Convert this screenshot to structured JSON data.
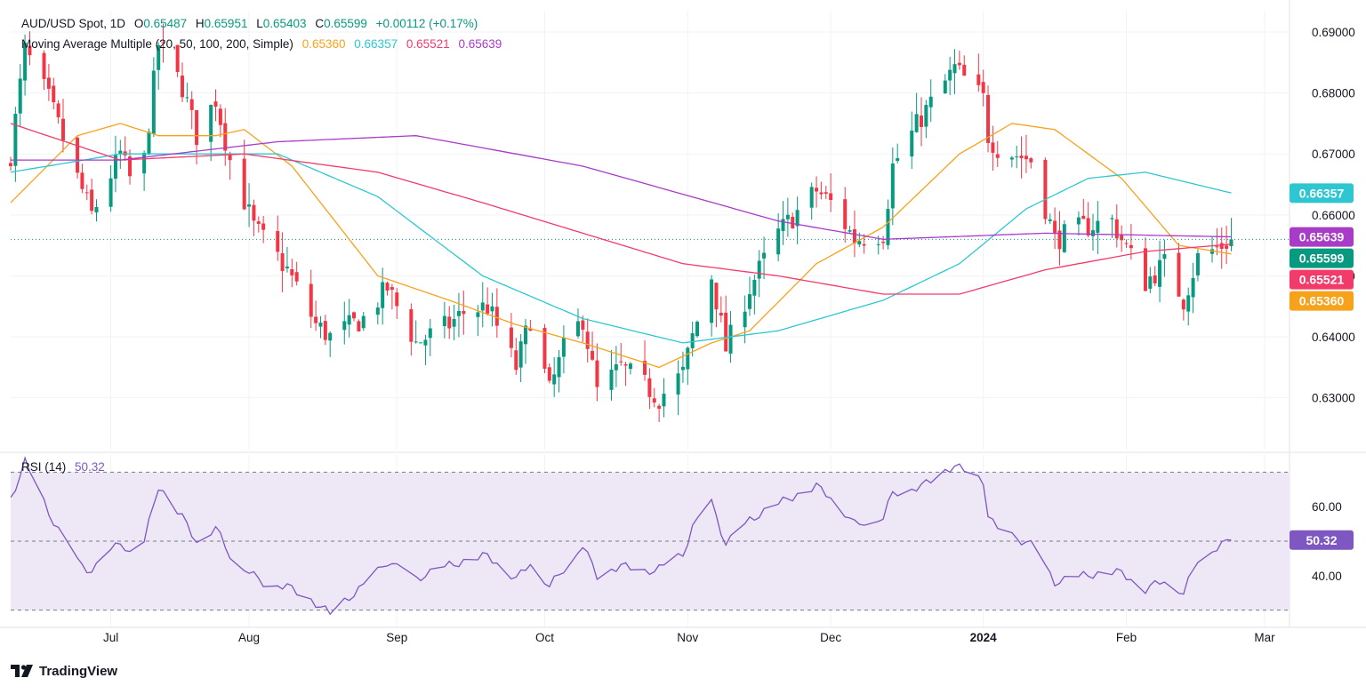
{
  "header": {
    "symbol": "AUD/USD Spot, 1D",
    "open_label": "O",
    "open": "0.65487",
    "high_label": "H",
    "high": "0.65951",
    "low_label": "L",
    "low": "0.65403",
    "close_label": "C",
    "close": "0.65599",
    "change": "+0.00112 (+0.17%)",
    "ma_label": "Moving Average Multiple (20, 50, 100, 200, Simple)",
    "ma20": "0.65360",
    "ma50": "0.66357",
    "ma100": "0.65521",
    "ma200": "0.65639"
  },
  "rsi_header": {
    "label": "RSI (14)",
    "value": "50.32"
  },
  "brand": "TradingView",
  "colors": {
    "up": "#089981",
    "down": "#f23645",
    "ma20": "#f7a21b",
    "ma50": "#2ec7d1",
    "ma100": "#f23b6b",
    "ma200": "#a83bc7",
    "rsi": "#7e57c2",
    "rsi_band": "#ede7f6",
    "grid": "#f0f3fa",
    "text": "#131722"
  },
  "chart_data": [
    {
      "type": "candlestick",
      "title": "AUD/USD Spot, 1D",
      "ylim": [
        0.6215,
        0.6935
      ],
      "y_ticks": [
        0.63,
        0.64,
        0.65,
        0.66,
        0.67,
        0.68,
        0.69
      ],
      "y_tick_labels": [
        "0.63000",
        "0.64000",
        "0.65000",
        "0.66000",
        "0.67000",
        "0.68000",
        "0.69000"
      ],
      "x_ticks": [
        {
          "date": "2023-07-03",
          "label": "Jul"
        },
        {
          "date": "2023-08-01",
          "label": "Aug"
        },
        {
          "date": "2023-09-01",
          "label": "Sep"
        },
        {
          "date": "2023-10-02",
          "label": "Oct"
        },
        {
          "date": "2023-11-01",
          "label": "Nov"
        },
        {
          "date": "2023-12-01",
          "label": "Dec"
        },
        {
          "date": "2024-01-02",
          "label": "2024"
        },
        {
          "date": "2024-02-01",
          "label": "Feb"
        },
        {
          "date": "2024-03-01",
          "label": "Mar"
        }
      ],
      "anchors": [
        {
          "date": "2023-06-12",
          "close": 0.67
        },
        {
          "date": "2023-06-15",
          "close": 0.687
        },
        {
          "date": "2023-06-20",
          "close": 0.679
        },
        {
          "date": "2023-06-26",
          "close": 0.666
        },
        {
          "date": "2023-06-29",
          "close": 0.66
        },
        {
          "date": "2023-07-05",
          "close": 0.67
        },
        {
          "date": "2023-07-07",
          "close": 0.666
        },
        {
          "date": "2023-07-10",
          "close": 0.669
        },
        {
          "date": "2023-07-13",
          "close": 0.688
        },
        {
          "date": "2023-07-18",
          "close": 0.681
        },
        {
          "date": "2023-07-21",
          "close": 0.673
        },
        {
          "date": "2023-07-25",
          "close": 0.679
        },
        {
          "date": "2023-07-28",
          "close": 0.669
        },
        {
          "date": "2023-08-02",
          "close": 0.658
        },
        {
          "date": "2023-08-04",
          "close": 0.656
        },
        {
          "date": "2023-08-09",
          "close": 0.651
        },
        {
          "date": "2023-08-15",
          "close": 0.642
        },
        {
          "date": "2023-08-18",
          "close": 0.64
        },
        {
          "date": "2023-08-25",
          "close": 0.643
        },
        {
          "date": "2023-08-30",
          "close": 0.648
        },
        {
          "date": "2023-09-05",
          "close": 0.639
        },
        {
          "date": "2023-09-12",
          "close": 0.642
        },
        {
          "date": "2023-09-15",
          "close": 0.644
        },
        {
          "date": "2023-09-20",
          "close": 0.645
        },
        {
          "date": "2023-09-26",
          "close": 0.635
        },
        {
          "date": "2023-09-29",
          "close": 0.643
        },
        {
          "date": "2023-10-03",
          "close": 0.631
        },
        {
          "date": "2023-10-06",
          "close": 0.638
        },
        {
          "date": "2023-10-10",
          "close": 0.643
        },
        {
          "date": "2023-10-13",
          "close": 0.631
        },
        {
          "date": "2023-10-18",
          "close": 0.635
        },
        {
          "date": "2023-10-23",
          "close": 0.632
        },
        {
          "date": "2023-10-26",
          "close": 0.63
        },
        {
          "date": "2023-10-31",
          "close": 0.634
        },
        {
          "date": "2023-11-02",
          "close": 0.64
        },
        {
          "date": "2023-11-06",
          "close": 0.65
        },
        {
          "date": "2023-11-09",
          "close": 0.638
        },
        {
          "date": "2023-11-14",
          "close": 0.648
        },
        {
          "date": "2023-11-20",
          "close": 0.657
        },
        {
          "date": "2023-11-28",
          "close": 0.664
        },
        {
          "date": "2023-12-01",
          "close": 0.662
        },
        {
          "date": "2023-12-06",
          "close": 0.656
        },
        {
          "date": "2023-12-12",
          "close": 0.657
        },
        {
          "date": "2023-12-14",
          "close": 0.668
        },
        {
          "date": "2023-12-20",
          "close": 0.676
        },
        {
          "date": "2023-12-27",
          "close": 0.684
        },
        {
          "date": "2024-01-02",
          "close": 0.679
        },
        {
          "date": "2024-01-03",
          "close": 0.673
        },
        {
          "date": "2024-01-05",
          "close": 0.671
        },
        {
          "date": "2024-01-12",
          "close": 0.669
        },
        {
          "date": "2024-01-17",
          "close": 0.656
        },
        {
          "date": "2024-01-23",
          "close": 0.658
        },
        {
          "date": "2024-01-29",
          "close": 0.659
        },
        {
          "date": "2024-01-31",
          "close": 0.656
        },
        {
          "date": "2024-02-05",
          "close": 0.649
        },
        {
          "date": "2024-02-09",
          "close": 0.652
        },
        {
          "date": "2024-02-13",
          "close": 0.646
        },
        {
          "date": "2024-02-16",
          "close": 0.653
        },
        {
          "date": "2024-02-21",
          "close": 0.655
        },
        {
          "date": "2024-02-23",
          "close": 0.656
        }
      ],
      "last_bar": {
        "date": "2024-02-23",
        "open": 0.65487,
        "high": 0.65951,
        "low": 0.65403,
        "close": 0.65599
      },
      "moving_averages": [
        {
          "name": "MA 20",
          "last": 0.6536,
          "points": [
            [
              "2023-06-12",
              0.662
            ],
            [
              "2023-06-26",
              0.673
            ],
            [
              "2023-07-05",
              0.675
            ],
            [
              "2023-07-13",
              0.673
            ],
            [
              "2023-07-25",
              0.673
            ],
            [
              "2023-07-31",
              0.674
            ],
            [
              "2023-08-10",
              0.668
            ],
            [
              "2023-08-28",
              0.65
            ],
            [
              "2023-09-12",
              0.646
            ],
            [
              "2023-09-26",
              0.642
            ],
            [
              "2023-10-10",
              0.639
            ],
            [
              "2023-10-26",
              0.635
            ],
            [
              "2023-11-06",
              0.639
            ],
            [
              "2023-11-14",
              0.641
            ],
            [
              "2023-11-28",
              0.652
            ],
            [
              "2023-12-12",
              0.658
            ],
            [
              "2023-12-28",
              0.67
            ],
            [
              "2024-01-08",
              0.675
            ],
            [
              "2024-01-17",
              0.674
            ],
            [
              "2024-01-31",
              0.666
            ],
            [
              "2024-02-12",
              0.655
            ],
            [
              "2024-02-23",
              0.6536
            ]
          ]
        },
        {
          "name": "MA 50",
          "last": 0.66357,
          "points": [
            [
              "2023-06-12",
              0.667
            ],
            [
              "2023-07-05",
              0.67
            ],
            [
              "2023-07-25",
              0.67
            ],
            [
              "2023-08-07",
              0.67
            ],
            [
              "2023-08-28",
              0.663
            ],
            [
              "2023-09-19",
              0.65
            ],
            [
              "2023-10-10",
              0.643
            ],
            [
              "2023-10-31",
              0.639
            ],
            [
              "2023-11-20",
              0.641
            ],
            [
              "2023-12-12",
              0.646
            ],
            [
              "2023-12-28",
              0.652
            ],
            [
              "2024-01-11",
              0.661
            ],
            [
              "2024-01-24",
              0.666
            ],
            [
              "2024-02-05",
              0.667
            ],
            [
              "2024-02-23",
              0.6636
            ]
          ]
        },
        {
          "name": "MA 100",
          "last": 0.65521,
          "points": [
            [
              "2023-06-12",
              0.675
            ],
            [
              "2023-07-05",
              0.669
            ],
            [
              "2023-07-31",
              0.67
            ],
            [
              "2023-08-28",
              0.667
            ],
            [
              "2023-09-19",
              0.662
            ],
            [
              "2023-10-10",
              0.657
            ],
            [
              "2023-10-31",
              0.652
            ],
            [
              "2023-11-20",
              0.65
            ],
            [
              "2023-12-12",
              0.647
            ],
            [
              "2023-12-28",
              0.647
            ],
            [
              "2024-01-15",
              0.651
            ],
            [
              "2024-02-05",
              0.654
            ],
            [
              "2024-02-23",
              0.6552
            ]
          ]
        },
        {
          "name": "MA 200",
          "last": 0.65639,
          "points": [
            [
              "2023-06-12",
              0.669
            ],
            [
              "2023-07-05",
              0.669
            ],
            [
              "2023-08-07",
              0.672
            ],
            [
              "2023-09-05",
              0.673
            ],
            [
              "2023-10-10",
              0.668
            ],
            [
              "2023-11-20",
              0.659
            ],
            [
              "2023-12-12",
              0.656
            ],
            [
              "2024-01-15",
              0.657
            ],
            [
              "2024-02-23",
              0.6564
            ]
          ]
        }
      ],
      "last_price_labels": [
        "0.66357",
        "0.65639",
        "0.65599",
        "0.65521",
        "0.65360"
      ]
    },
    {
      "type": "line",
      "title": "RSI (14)",
      "ylim": [
        25,
        75
      ],
      "y_ticks": [
        40,
        60
      ],
      "y_tick_labels": [
        "40.00",
        "60.00"
      ],
      "bands": [
        30,
        50,
        70
      ],
      "last": 50.32,
      "points": [
        [
          "2023-06-12",
          62
        ],
        [
          "2023-06-15",
          73
        ],
        [
          "2023-06-20",
          58
        ],
        [
          "2023-06-26",
          44
        ],
        [
          "2023-06-29",
          41
        ],
        [
          "2023-07-05",
          50
        ],
        [
          "2023-07-07",
          46
        ],
        [
          "2023-07-10",
          50
        ],
        [
          "2023-07-13",
          66
        ],
        [
          "2023-07-18",
          57
        ],
        [
          "2023-07-21",
          50
        ],
        [
          "2023-07-25",
          54
        ],
        [
          "2023-07-28",
          46
        ],
        [
          "2023-08-02",
          40
        ],
        [
          "2023-08-04",
          38
        ],
        [
          "2023-08-09",
          37
        ],
        [
          "2023-08-15",
          32
        ],
        [
          "2023-08-18",
          29
        ],
        [
          "2023-08-25",
          37
        ],
        [
          "2023-08-30",
          44
        ],
        [
          "2023-09-05",
          39
        ],
        [
          "2023-09-12",
          43
        ],
        [
          "2023-09-15",
          44
        ],
        [
          "2023-09-20",
          46
        ],
        [
          "2023-09-26",
          39
        ],
        [
          "2023-09-29",
          44
        ],
        [
          "2023-10-03",
          37
        ],
        [
          "2023-10-06",
          42
        ],
        [
          "2023-10-10",
          49
        ],
        [
          "2023-10-13",
          40
        ],
        [
          "2023-10-18",
          43
        ],
        [
          "2023-10-23",
          41
        ],
        [
          "2023-10-26",
          42
        ],
        [
          "2023-10-31",
          46
        ],
        [
          "2023-11-02",
          54
        ],
        [
          "2023-11-06",
          61
        ],
        [
          "2023-11-09",
          49
        ],
        [
          "2023-11-14",
          56
        ],
        [
          "2023-11-20",
          61
        ],
        [
          "2023-11-28",
          66
        ],
        [
          "2023-12-01",
          63
        ],
        [
          "2023-12-06",
          55
        ],
        [
          "2023-12-12",
          57
        ],
        [
          "2023-12-14",
          64
        ],
        [
          "2023-12-20",
          66
        ],
        [
          "2023-12-27",
          72
        ],
        [
          "2024-01-02",
          67
        ],
        [
          "2024-01-03",
          58
        ],
        [
          "2024-01-05",
          53
        ],
        [
          "2024-01-12",
          49
        ],
        [
          "2024-01-17",
          38
        ],
        [
          "2024-01-23",
          40
        ],
        [
          "2024-01-29",
          41
        ],
        [
          "2024-01-31",
          41
        ],
        [
          "2024-02-05",
          36
        ],
        [
          "2024-02-09",
          39
        ],
        [
          "2024-02-13",
          35
        ],
        [
          "2024-02-16",
          45
        ],
        [
          "2024-02-21",
          49
        ],
        [
          "2024-02-23",
          50.32
        ]
      ]
    }
  ]
}
